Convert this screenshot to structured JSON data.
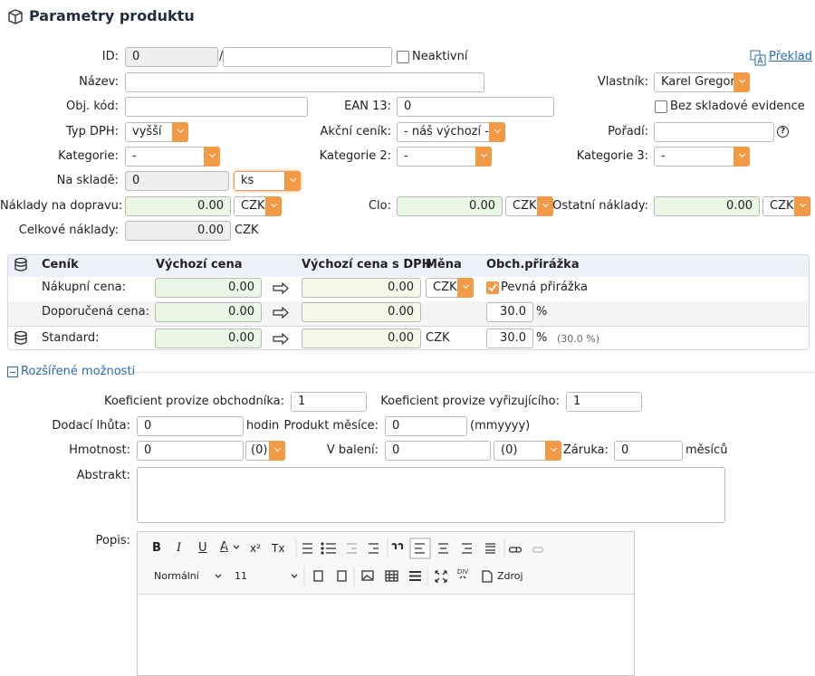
{
  "header": {
    "title": "Parametry produktu",
    "translate": "Překlad"
  },
  "form": {
    "id": {
      "label": "ID:",
      "value": "0",
      "separator": "/",
      "inactive": "Neaktivní"
    },
    "name": {
      "label": "Název:"
    },
    "owner": {
      "label": "Vlastník:",
      "value": "Karel Gregor"
    },
    "code": {
      "label": "Obj. kód:"
    },
    "ean": {
      "label": "EAN 13:",
      "value": "0"
    },
    "no_stock": {
      "label": "Bez skladové evidence"
    },
    "vat": {
      "label": "Typ DPH:",
      "value": "vyšší"
    },
    "promo": {
      "label": "Akční ceník:",
      "value": "- náš výchozí -"
    },
    "order": {
      "label": "Pořadí:",
      "help": "?"
    },
    "category1": {
      "label": "Kategorie:",
      "value": "-"
    },
    "category2": {
      "label": "Kategorie 2:",
      "value": "-"
    },
    "category3": {
      "label": "Kategorie 3:",
      "value": "-"
    },
    "stock": {
      "label": "Na skladě:",
      "value": "0",
      "unit": "ks"
    },
    "shipping": {
      "label": "Náklady na dopravu:",
      "value": "0.00",
      "currency": "CZK"
    },
    "duty": {
      "label": "Clo:",
      "value": "0.00",
      "currency": "CZK"
    },
    "other": {
      "label": "Ostatní náklady:",
      "value": "0.00",
      "currency": "CZK"
    },
    "total": {
      "label": "Celkové náklady:",
      "value": "0.00",
      "currency": "CZK"
    }
  },
  "table": {
    "columns": [
      "Ceník",
      "Výchozí cena",
      "Výchozí cena s DPH",
      "Měna",
      "Obch.přirážka"
    ],
    "rows": [
      [
        "Nákupní cena:",
        "0.00",
        "0.00",
        "CZK",
        "Pevná přirážka"
      ],
      [
        "Doporučená cena:",
        "0.00",
        "0.00",
        "30.0",
        "%"
      ],
      [
        "Standard:",
        "0.00",
        "0.00",
        "CZK",
        "30.0",
        "%",
        "(30.0 %)"
      ]
    ]
  },
  "extended": {
    "title": "Rozšířené možnosti",
    "agent_coef": {
      "label": "Koeficient provize obchodníka:",
      "value": "1"
    },
    "handler_coef": {
      "label": "Koeficient provize vyřizujícího:",
      "value": "1"
    },
    "delivery": {
      "label": "Dodací lhůta:",
      "value": "0",
      "unit": "hodin"
    },
    "month": {
      "label": "Produkt měsíce:",
      "value": "0",
      "hint": "(mmyyyy)"
    },
    "weight": {
      "label": "Hmotnost:",
      "value": "0",
      "unit": "(0)"
    },
    "package": {
      "label": "V balení:",
      "value": "0",
      "unit": "(0)"
    },
    "warranty": {
      "label": "Záruka:",
      "value": "0",
      "unit": "měsíců"
    },
    "abstract": {
      "label": "Abstrakt:"
    },
    "description": {
      "label": "Popis:"
    },
    "editor": {
      "tools": [
        "B",
        "I",
        "U",
        "A",
        "x²",
        "Tx"
      ],
      "format": "Normální",
      "size": "11",
      "source": "Zdroj"
    }
  }
}
